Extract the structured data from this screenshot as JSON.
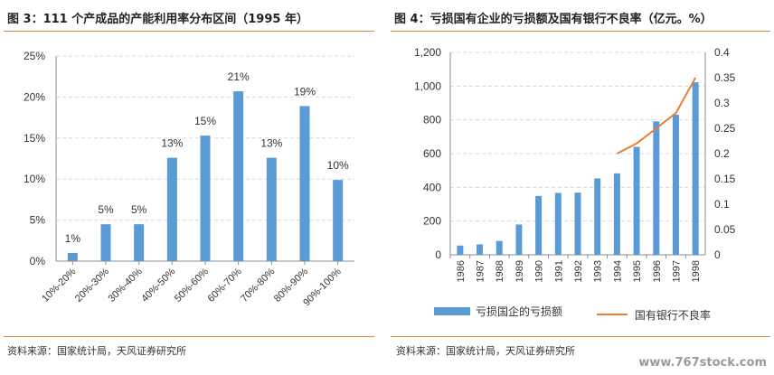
{
  "left_panel": {
    "title": "图 3：111 个产成品的产能利用率分布区间（1995 年）",
    "source": "资料来源：国家统计局，天风证券研究所"
  },
  "right_panel": {
    "title": "图 4：亏损国有企业的亏损额及国有银行不良率（亿元。%）",
    "source": "资料来源：国家统计局，天风证券研究所",
    "legend_bar": "亏损国企的亏损额",
    "legend_line": "国有银行不良率"
  },
  "watermark": "www.767stock.com",
  "colors": {
    "bar": "#5b9bd5",
    "line": "#ed7d31",
    "rule": "#e08a3a"
  },
  "chart_data": [
    {
      "type": "bar",
      "categories": [
        "10%-20%",
        "20%-30%",
        "30%-40%",
        "40%-50%",
        "50%-60%",
        "60%-70%",
        "70%-80%",
        "80%-90%",
        "90%-100%"
      ],
      "values": [
        1,
        4.5,
        4.5,
        12.6,
        15.3,
        20.7,
        12.6,
        18.9,
        9.9
      ],
      "data_labels": [
        "1%",
        "5%",
        "5%",
        "13%",
        "15%",
        "21%",
        "13%",
        "19%",
        "10%"
      ],
      "y_ticks": [
        "0%",
        "5%",
        "10%",
        "15%",
        "20%",
        "25%"
      ],
      "ylim": [
        0,
        25
      ],
      "grid": true
    },
    {
      "type": "bar+line",
      "categories": [
        "1986",
        "1987",
        "1988",
        "1989",
        "1990",
        "1991",
        "1992",
        "1993",
        "1994",
        "1995",
        "1996",
        "1997",
        "1998"
      ],
      "series": [
        {
          "name": "亏损国企的亏损额",
          "type": "bar",
          "axis": "left",
          "values": [
            55,
            62,
            82,
            180,
            349,
            367,
            369,
            453,
            483,
            640,
            791,
            831,
            1023
          ]
        },
        {
          "name": "国有银行不良率",
          "type": "line",
          "axis": "right",
          "x": [
            "1994",
            "1995",
            "1996",
            "1997",
            "1998"
          ],
          "values": [
            0.2,
            0.22,
            0.25,
            0.28,
            0.35
          ]
        }
      ],
      "y_left_ticks": [
        "0",
        "200",
        "400",
        "600",
        "800",
        "1,000",
        "1,200"
      ],
      "y_right_ticks": [
        "0",
        "0.05",
        "0.1",
        "0.15",
        "0.2",
        "0.25",
        "0.3",
        "0.35",
        "0.4"
      ],
      "ylim_left": [
        0,
        1200
      ],
      "ylim_right": [
        0,
        0.4
      ],
      "grid": true,
      "legend_position": "bottom"
    }
  ]
}
